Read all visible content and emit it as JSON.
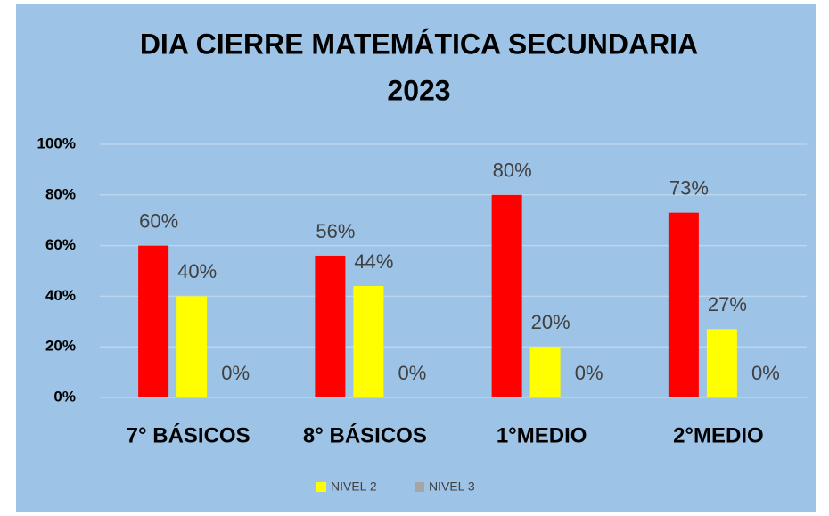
{
  "chart_data": {
    "type": "bar",
    "title": [
      "DIA  CIERRE MATEMÁTICA SECUNDARIA",
      "2023"
    ],
    "categories": [
      "7° BÁSICOS",
      "8° BÁSICOS",
      "1°MEDIO",
      "2°MEDIO"
    ],
    "series": [
      {
        "color": "#ff0000",
        "values": [
          60,
          56,
          80,
          73
        ],
        "value_labels": [
          "60%",
          "56%",
          "80%",
          "73%"
        ]
      },
      {
        "name": "NIVEL 2",
        "color": "#ffff00",
        "values": [
          40,
          44,
          20,
          27
        ],
        "value_labels": [
          "40%",
          "44%",
          "20%",
          "27%"
        ]
      },
      {
        "name": "NIVEL 3",
        "color": "#a5a5a5",
        "values": [
          0,
          0,
          0,
          0
        ],
        "value_labels": [
          "0%",
          "0%",
          "0%",
          "0%"
        ]
      }
    ],
    "ylim": [
      0,
      100
    ],
    "yticks": [
      {
        "value": 0,
        "label": "0%"
      },
      {
        "value": 20,
        "label": "20%"
      },
      {
        "value": 40,
        "label": "40%"
      },
      {
        "value": 60,
        "label": "60%"
      },
      {
        "value": 80,
        "label": "80%"
      },
      {
        "value": 100,
        "label": "100%"
      }
    ],
    "grid": true,
    "legend": "bottom"
  }
}
